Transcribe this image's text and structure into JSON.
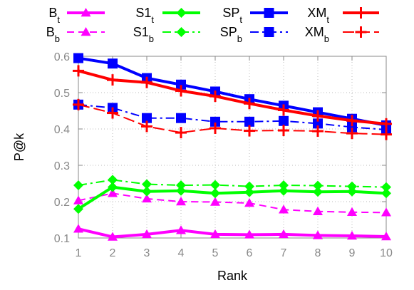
{
  "chart_data": {
    "type": "line",
    "title": "",
    "xlabel": "Rank",
    "ylabel": "P@k",
    "x": [
      1,
      2,
      3,
      4,
      5,
      6,
      7,
      8,
      9,
      10
    ],
    "xlim": [
      1,
      10
    ],
    "ylim": [
      0.1,
      0.6
    ],
    "yticks": [
      "0.1",
      "0.2",
      "0.3",
      "0.4",
      "0.5",
      "0.6"
    ],
    "xticks": [
      "1",
      "2",
      "3",
      "4",
      "5",
      "6",
      "7",
      "8",
      "9",
      "10"
    ],
    "grid": true,
    "legend_position": "top",
    "series": [
      {
        "name": "B",
        "sub": "t",
        "color": "#ff00ff",
        "dash": "solid",
        "marker": "triangle",
        "values": [
          0.125,
          0.103,
          0.11,
          0.121,
          0.11,
          0.109,
          0.11,
          0.107,
          0.106,
          0.104
        ]
      },
      {
        "name": "B",
        "sub": "b",
        "color": "#ff00ff",
        "dash": "dashed",
        "marker": "triangle",
        "values": [
          0.203,
          0.223,
          0.208,
          0.2,
          0.199,
          0.196,
          0.178,
          0.173,
          0.171,
          0.17
        ]
      },
      {
        "name": "S1",
        "sub": "t",
        "color": "#00ff00",
        "dash": "solid",
        "marker": "diamond",
        "values": [
          0.18,
          0.24,
          0.228,
          0.23,
          0.223,
          0.226,
          0.23,
          0.227,
          0.228,
          0.223
        ]
      },
      {
        "name": "S1",
        "sub": "b",
        "color": "#00ff00",
        "dash": "dashdot",
        "marker": "diamond",
        "values": [
          0.245,
          0.26,
          0.248,
          0.245,
          0.246,
          0.242,
          0.245,
          0.244,
          0.242,
          0.24
        ]
      },
      {
        "name": "SP",
        "sub": "t",
        "color": "#0000ff",
        "dash": "solid",
        "marker": "square",
        "values": [
          0.595,
          0.58,
          0.54,
          0.522,
          0.503,
          0.482,
          0.464,
          0.446,
          0.428,
          0.41
        ]
      },
      {
        "name": "SP",
        "sub": "b",
        "color": "#0000ff",
        "dash": "dashdot",
        "marker": "square",
        "values": [
          0.467,
          0.458,
          0.43,
          0.43,
          0.42,
          0.42,
          0.422,
          0.415,
          0.405,
          0.398
        ]
      },
      {
        "name": "XM",
        "sub": "t",
        "color": "#ff0000",
        "dash": "solid",
        "marker": "plus",
        "values": [
          0.56,
          0.535,
          0.528,
          0.505,
          0.49,
          0.47,
          0.452,
          0.436,
          0.423,
          0.414
        ]
      },
      {
        "name": "XM",
        "sub": "b",
        "color": "#ff0000",
        "dash": "longdash",
        "marker": "plus",
        "values": [
          0.467,
          0.444,
          0.407,
          0.39,
          0.402,
          0.395,
          0.396,
          0.394,
          0.388,
          0.385
        ]
      }
    ]
  }
}
